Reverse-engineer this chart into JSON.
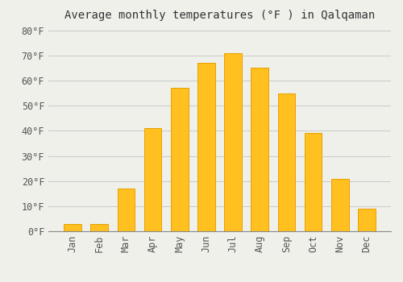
{
  "months": [
    "Jan",
    "Feb",
    "Mar",
    "Apr",
    "May",
    "Jun",
    "Jul",
    "Aug",
    "Sep",
    "Oct",
    "Nov",
    "Dec"
  ],
  "values": [
    3,
    3,
    17,
    41,
    57,
    67,
    71,
    65,
    55,
    39,
    21,
    9
  ],
  "bar_color": "#FFC020",
  "bar_edge_color": "#E8A000",
  "title": "Average monthly temperatures (°F ) in Qalqaman",
  "title_fontsize": 10,
  "ylim": [
    0,
    82
  ],
  "yticks": [
    0,
    10,
    20,
    30,
    40,
    50,
    60,
    70,
    80
  ],
  "ytick_labels": [
    "0°F",
    "10°F",
    "20°F",
    "30°F",
    "40°F",
    "50°F",
    "60°F",
    "70°F",
    "80°F"
  ],
  "grid_color": "#cccccc",
  "background_color": "#f0f0eb",
  "tick_font_family": "monospace",
  "tick_fontsize": 8.5,
  "bar_width": 0.65
}
